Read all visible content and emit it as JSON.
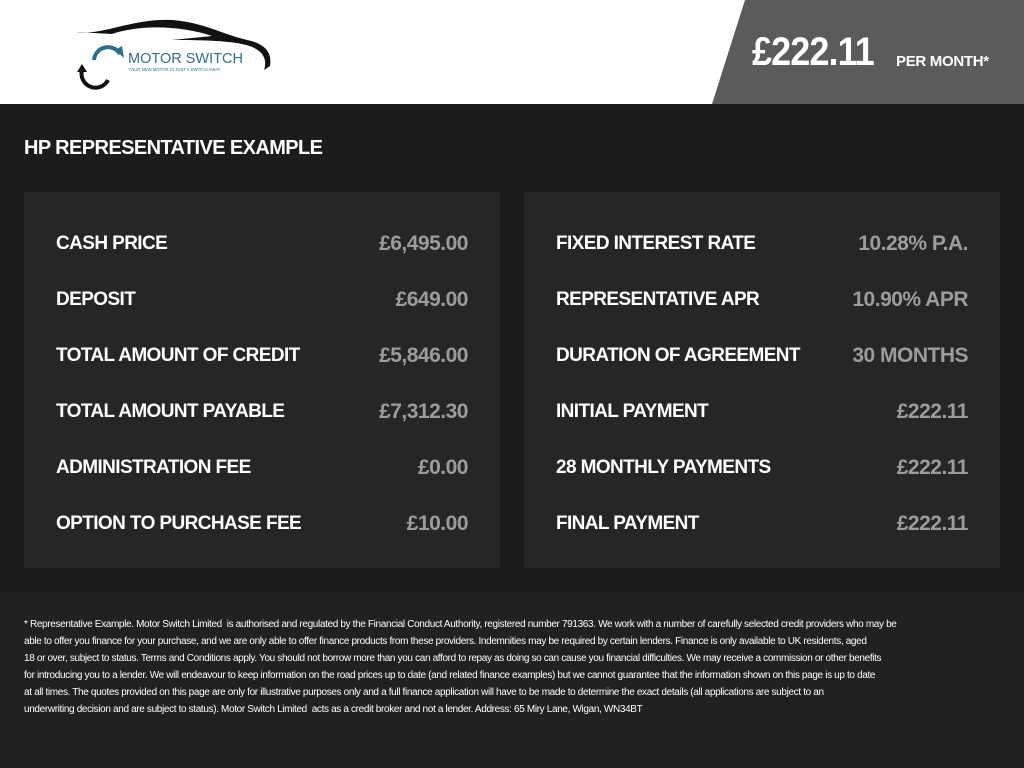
{
  "header": {
    "logo_text": "MOTOR SWITCH",
    "logo_tagline": "YOUR NEW MOTOR IS JUST A SWITCH AWAY",
    "monthly_price": "£222.11",
    "per_month_label": "PER MONTH*",
    "logo_color": "#2e6f8e"
  },
  "title": "HP REPRESENTATIVE EXAMPLE",
  "left_panel": [
    {
      "label": "CASH PRICE",
      "value": "£6,495.00"
    },
    {
      "label": "DEPOSIT",
      "value": "£649.00"
    },
    {
      "label": "TOTAL AMOUNT OF CREDIT",
      "value": "£5,846.00"
    },
    {
      "label": "TOTAL AMOUNT PAYABLE",
      "value": "£7,312.30"
    },
    {
      "label": "ADMINISTRATION FEE",
      "value": "£0.00"
    },
    {
      "label": "OPTION TO PURCHASE FEE",
      "value": "£10.00"
    }
  ],
  "right_panel": [
    {
      "label": "FIXED INTEREST RATE",
      "value": "10.28% P.A."
    },
    {
      "label": "REPRESENTATIVE APR",
      "value": "10.90% APR"
    },
    {
      "label": "DURATION OF AGREEMENT",
      "value": "30 MONTHS"
    },
    {
      "label": "INITIAL PAYMENT",
      "value": "£222.11"
    },
    {
      "label": "28 MONTHLY PAYMENTS",
      "value": "£222.11"
    },
    {
      "label": "FINAL PAYMENT",
      "value": "£222.11"
    }
  ],
  "disclaimer": [
    "* Representative Example. Motor Switch Limited  is authorised and regulated by the Financial Conduct Authority, registered number 791363. We work with a number of carefully selected credit providers who may be",
    "able to offer you finance for your purchase, and we are only able to offer finance products from these providers. Indemnities may be required by certain lenders. Finance is only available to UK residents, aged",
    "18 or over, subject to status. Terms and Conditions apply. You should not borrow more than you can afford to repay as doing so can cause you financial difficulties. We may receive a commission or other benefits",
    "for introducing you to a lender. We will endeavour to keep information on the road prices up to date (and related finance examples) but we cannot guarantee that the information shown on this page is up to date",
    "at all times. The quotes provided on this page are only for illustrative purposes only and a full finance application will have to be made to determine the exact details (all applications are subject to an",
    "underwriting decision and are subject to status). Motor Switch Limited  acts as a credit broker and not a lender. Address: 65 Miry Lane, Wigan, WN34BT"
  ]
}
